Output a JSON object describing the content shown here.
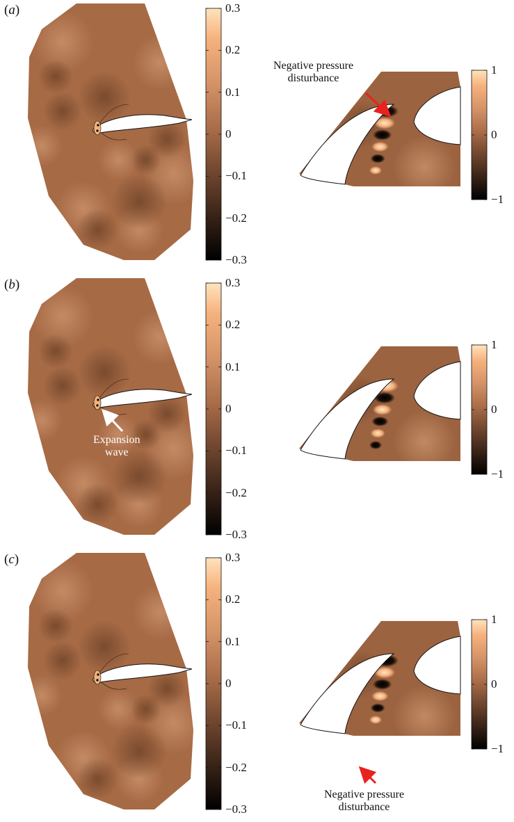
{
  "panels": [
    {
      "label_open": "(",
      "label_letter": "a",
      "label_close": ")",
      "main_cbar_ticks": [
        "0.3",
        "0.2",
        "0.1",
        "0",
        "−0.1",
        "−0.2",
        "−0.3"
      ],
      "zoom_cbar_ticks": [
        "1",
        "0",
        "−1"
      ]
    },
    {
      "label_open": "(",
      "label_letter": "b",
      "label_close": ")",
      "main_cbar_ticks": [
        "0.3",
        "0.2",
        "0.1",
        "0",
        "−0.1",
        "−0.2",
        "−0.3"
      ],
      "zoom_cbar_ticks": [
        "1",
        "0",
        "−1"
      ]
    },
    {
      "label_open": "(",
      "label_letter": "c",
      "label_close": ")",
      "main_cbar_ticks": [
        "0.3",
        "0.2",
        "0.1",
        "0",
        "−0.1",
        "−0.2",
        "−0.3"
      ],
      "zoom_cbar_ticks": [
        "1",
        "0",
        "−1"
      ]
    }
  ],
  "annotations": {
    "a_negative": {
      "line1": "Negative pressure",
      "line2": "disturbance"
    },
    "b_expansion": {
      "line1": "Expansion",
      "line2": "wave"
    },
    "c_negative": {
      "line1": "Negative pressure",
      "line2": "disturbance"
    }
  },
  "colors": {
    "field_base": "#a66a45",
    "field_light": "#c58d62",
    "field_dark": "#7e4f33",
    "colormap": [
      "#000000",
      "#3a2418",
      "#7a4d33",
      "#a86c48",
      "#d49267",
      "#f6b27d",
      "#ffe3bc"
    ],
    "arrow_red": "#e8231f",
    "arrow_white": "#ffffff"
  }
}
